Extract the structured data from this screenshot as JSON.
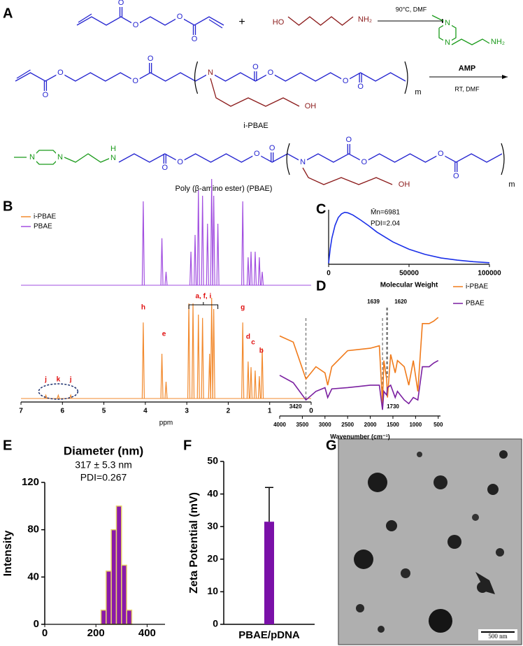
{
  "panel_labels": [
    "A",
    "B",
    "C",
    "D",
    "E",
    "F",
    "G"
  ],
  "scheme": {
    "oxygen": "O",
    "nitrogen": "N",
    "hydroxyl_left": "HO",
    "amine": "NH₂",
    "plus": "+",
    "step1_conditions": "90°C, DMF",
    "hydroxyl": "OH",
    "repeat": "m",
    "intermediate": "i-PBAE",
    "reagent": "AMP",
    "step2_conditions": "RT, DMF",
    "hydrogen": "H",
    "product": "Poly (β-amino ester) (PBAE)"
  },
  "image": {
    "scale_bar": "500 nm"
  },
  "chart_data": [
    {
      "type": "spectrum",
      "x_label": "ppm",
      "xlim": [
        7,
        0
      ],
      "xticks": [
        7,
        6,
        5,
        4,
        3,
        2,
        1,
        0
      ],
      "series": [
        {
          "name": "i-PBAE",
          "color": "#f28a2e",
          "x": [
            6.4,
            6.1,
            5.8,
            4.05,
            3.6,
            3.5,
            2.95,
            2.85,
            2.72,
            2.62,
            2.45,
            2.4,
            2.35,
            1.65,
            1.52,
            1.45,
            1.35,
            1.25,
            1.18
          ],
          "values": [
            3,
            3,
            3,
            68,
            40,
            15,
            85,
            85,
            75,
            72,
            40,
            90,
            80,
            68,
            33,
            28,
            25,
            20,
            45
          ]
        },
        {
          "name": "PBAE",
          "color": "#a24fe0",
          "x": [
            4.05,
            3.6,
            3.5,
            2.9,
            2.8,
            2.72,
            2.62,
            2.5,
            2.4,
            2.35,
            2.25,
            1.65,
            1.52,
            1.45,
            1.35,
            1.25,
            1.18
          ],
          "values": [
            75,
            42,
            12,
            30,
            45,
            85,
            80,
            55,
            95,
            80,
            55,
            75,
            25,
            30,
            30,
            25,
            12
          ]
        }
      ],
      "annotations": [
        "h",
        "e",
        "a, f, i",
        "g",
        "d",
        "c",
        "b",
        "j",
        "k",
        "j"
      ]
    },
    {
      "type": "line",
      "x_label": "Molecular Weight",
      "xlim": [
        0,
        100000
      ],
      "xticks": [
        0,
        50000,
        100000
      ],
      "ylim": [
        0,
        1.05
      ],
      "x": [
        0,
        1000,
        2000,
        4000,
        6000,
        8000,
        10000,
        12000,
        15000,
        20000,
        25000,
        30000,
        40000,
        50000,
        60000,
        70000,
        80000,
        90000,
        100000
      ],
      "series": [
        {
          "color": "#1a2fe8",
          "values": [
            0.02,
            0.3,
            0.5,
            0.75,
            0.9,
            0.97,
            1.0,
            0.99,
            0.95,
            0.85,
            0.74,
            0.62,
            0.43,
            0.29,
            0.19,
            0.12,
            0.08,
            0.05,
            0.03
          ]
        }
      ],
      "annotations": [
        "M̄n=6981",
        "PDI=2.04"
      ]
    },
    {
      "type": "line",
      "x_label": "Wavenumber (cm⁻¹)",
      "xlim": [
        4000,
        450
      ],
      "xticks": [
        4000,
        3500,
        3000,
        2500,
        2000,
        1500,
        1000,
        500
      ],
      "ylim": [
        -5,
        100
      ],
      "x": [
        4000,
        3700,
        3420,
        3200,
        3000,
        2940,
        2850,
        2500,
        2000,
        1800,
        1730,
        1700,
        1639,
        1620,
        1550,
        1450,
        1400,
        1250,
        1150,
        1050,
        950,
        850,
        700,
        600,
        500
      ],
      "series": [
        {
          "name": "i-PBAE",
          "color": "#f07a1a",
          "values": [
            60,
            55,
            25,
            35,
            30,
            20,
            35,
            48,
            50,
            52,
            5,
            40,
            25,
            10,
            45,
            30,
            40,
            35,
            20,
            40,
            15,
            70,
            70,
            72,
            75
          ]
        },
        {
          "name": "PBAE",
          "color": "#7a1fa0",
          "values": [
            28,
            22,
            8,
            15,
            18,
            10,
            17,
            18,
            20,
            20,
            0,
            15,
            12,
            18,
            20,
            10,
            15,
            8,
            5,
            10,
            8,
            35,
            35,
            38,
            40
          ]
        }
      ],
      "annotations": [
        3420,
        1730,
        1639,
        1620
      ]
    },
    {
      "type": "histogram",
      "title": "Diameter (nm)",
      "y_label": "Intensity",
      "annotations": [
        "317 ± 5.3 nm",
        "PDI=0.267"
      ],
      "xlim": [
        0,
        470
      ],
      "xticks": [
        0,
        200,
        400
      ],
      "ylim": [
        0,
        120
      ],
      "yticks": [
        0,
        40,
        80,
        120
      ],
      "bins": [
        220,
        240,
        260,
        280,
        300,
        320,
        340
      ],
      "values": [
        12,
        45,
        80,
        100,
        50,
        12
      ],
      "color": "#8a1aa8",
      "edge_color": "#e8d26a"
    },
    {
      "type": "bar",
      "y_label": "Zeta Potential (mV)",
      "categories": [
        "PBAE/pDNA"
      ],
      "values": [
        31.5
      ],
      "errors": [
        10.5
      ],
      "color": "#7a10a8",
      "ylim": [
        0,
        50
      ],
      "yticks": [
        0,
        10,
        20,
        30,
        40,
        50
      ]
    }
  ]
}
